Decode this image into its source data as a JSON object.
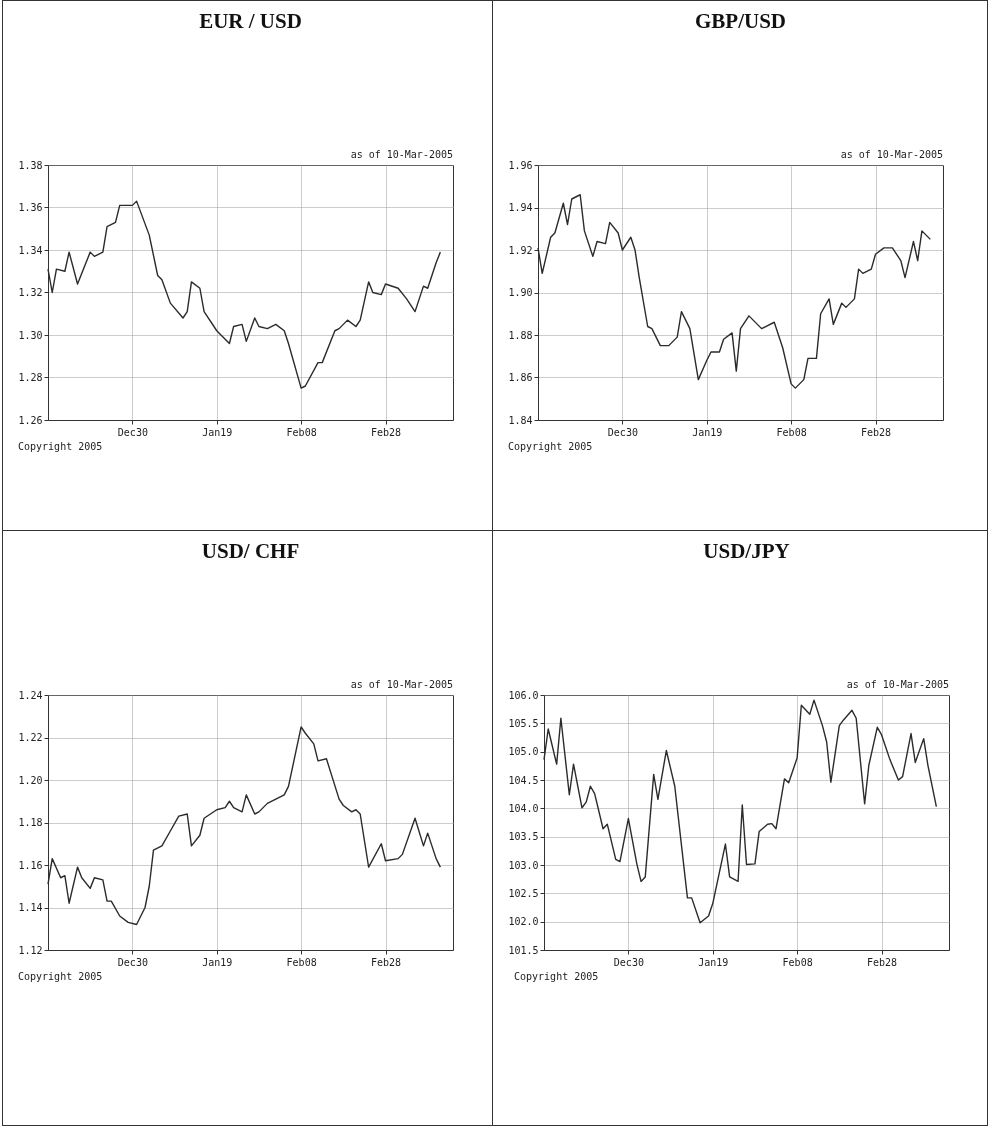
{
  "chart_data": [
    {
      "type": "line",
      "title": "EUR / USD",
      "annotations": [
        "as of 10-Mar-2005",
        "Copyright 2005"
      ],
      "grid": true,
      "xlim": [
        "2004-12-10",
        "2005-03-16"
      ],
      "xticks": [
        {
          "value": "2004-12-30",
          "label": "Dec30"
        },
        {
          "value": "2005-01-19",
          "label": "Jan19"
        },
        {
          "value": "2005-02-08",
          "label": "Feb08"
        },
        {
          "value": "2005-02-28",
          "label": "Feb28"
        }
      ],
      "ylim": [
        1.26,
        1.38
      ],
      "yticks": [
        {
          "value": 1.26,
          "label": "1.26"
        },
        {
          "value": 1.28,
          "label": "1.28"
        },
        {
          "value": 1.3,
          "label": "1.30"
        },
        {
          "value": 1.32,
          "label": "1.32"
        },
        {
          "value": 1.34,
          "label": "1.34"
        },
        {
          "value": 1.36,
          "label": "1.36"
        },
        {
          "value": 1.38,
          "label": "1.38"
        }
      ],
      "x": [
        "2004-12-10",
        "2004-12-11",
        "2004-12-12",
        "2004-12-14",
        "2004-12-15",
        "2004-12-17",
        "2004-12-20",
        "2004-12-21",
        "2004-12-23",
        "2004-12-24",
        "2004-12-26",
        "2004-12-27",
        "2004-12-30",
        "2004-12-31",
        "2005-01-03",
        "2005-01-05",
        "2005-01-06",
        "2005-01-08",
        "2005-01-11",
        "2005-01-12",
        "2005-01-13",
        "2005-01-15",
        "2005-01-16",
        "2005-01-19",
        "2005-01-20",
        "2005-01-22",
        "2005-01-23",
        "2005-01-25",
        "2005-01-26",
        "2005-01-28",
        "2005-01-29",
        "2005-01-31",
        "2005-02-02",
        "2005-02-04",
        "2005-02-05",
        "2005-02-08",
        "2005-02-09",
        "2005-02-12",
        "2005-02-13",
        "2005-02-16",
        "2005-02-17",
        "2005-02-19",
        "2005-02-21",
        "2005-02-22",
        "2005-02-24",
        "2005-02-25",
        "2005-02-27",
        "2005-02-28",
        "2005-03-03",
        "2005-03-05",
        "2005-03-07",
        "2005-03-09",
        "2005-03-10",
        "2005-03-12",
        "2005-03-13"
      ],
      "values": [
        1.331,
        1.32,
        1.331,
        1.33,
        1.339,
        1.324,
        1.339,
        1.337,
        1.339,
        1.351,
        1.353,
        1.361,
        1.361,
        1.363,
        1.347,
        1.328,
        1.326,
        1.315,
        1.308,
        1.311,
        1.325,
        1.322,
        1.311,
        1.302,
        1.3,
        1.296,
        1.304,
        1.305,
        1.297,
        1.308,
        1.304,
        1.303,
        1.305,
        1.302,
        1.296,
        1.275,
        1.276,
        1.287,
        1.287,
        1.302,
        1.303,
        1.307,
        1.304,
        1.307,
        1.325,
        1.32,
        1.319,
        1.324,
        1.322,
        1.317,
        1.311,
        1.323,
        1.322,
        1.334,
        1.339
      ]
    },
    {
      "type": "line",
      "title": "GBP/USD",
      "annotations": [
        "as of 10-Mar-2005",
        "Copyright 2005"
      ],
      "grid": true,
      "xlim": [
        "2004-12-10",
        "2005-03-16"
      ],
      "xticks": [
        {
          "value": "2004-12-30",
          "label": "Dec30"
        },
        {
          "value": "2005-01-19",
          "label": "Jan19"
        },
        {
          "value": "2005-02-08",
          "label": "Feb08"
        },
        {
          "value": "2005-02-28",
          "label": "Feb28"
        }
      ],
      "ylim": [
        1.84,
        1.96
      ],
      "yticks": [
        {
          "value": 1.84,
          "label": "1.84"
        },
        {
          "value": 1.86,
          "label": "1.86"
        },
        {
          "value": 1.88,
          "label": "1.88"
        },
        {
          "value": 1.9,
          "label": "1.90"
        },
        {
          "value": 1.92,
          "label": "1.92"
        },
        {
          "value": 1.94,
          "label": "1.94"
        },
        {
          "value": 1.96,
          "label": "1.96"
        }
      ],
      "x": [
        "2004-12-10",
        "2004-12-11",
        "2004-12-13",
        "2004-12-14",
        "2004-12-16",
        "2004-12-17",
        "2004-12-18",
        "2004-12-20",
        "2004-12-21",
        "2004-12-23",
        "2004-12-24",
        "2004-12-26",
        "2004-12-27",
        "2004-12-29",
        "2004-12-30",
        "2005-01-01",
        "2005-01-02",
        "2005-01-03",
        "2005-01-05",
        "2005-01-06",
        "2005-01-08",
        "2005-01-10",
        "2005-01-12",
        "2005-01-13",
        "2005-01-15",
        "2005-01-17",
        "2005-01-19",
        "2005-01-20",
        "2005-01-22",
        "2005-01-23",
        "2005-01-25",
        "2005-01-26",
        "2005-01-27",
        "2005-01-29",
        "2005-01-30",
        "2005-02-01",
        "2005-02-04",
        "2005-02-06",
        "2005-02-08",
        "2005-02-09",
        "2005-02-11",
        "2005-02-12",
        "2005-02-14",
        "2005-02-15",
        "2005-02-17",
        "2005-02-18",
        "2005-02-20",
        "2005-02-21",
        "2005-02-23",
        "2005-02-24",
        "2005-02-25",
        "2005-02-27",
        "2005-02-28",
        "2005-03-02",
        "2005-03-04",
        "2005-03-06",
        "2005-03-07",
        "2005-03-09",
        "2005-03-10",
        "2005-03-11",
        "2005-03-13"
      ],
      "values": [
        1.921,
        1.909,
        1.926,
        1.928,
        1.942,
        1.932,
        1.944,
        1.946,
        1.929,
        1.917,
        1.924,
        1.923,
        1.933,
        1.928,
        1.92,
        1.926,
        1.92,
        1.907,
        1.884,
        1.883,
        1.875,
        1.875,
        1.879,
        1.891,
        1.883,
        1.859,
        1.868,
        1.872,
        1.872,
        1.878,
        1.881,
        1.863,
        1.883,
        1.889,
        1.887,
        1.883,
        1.886,
        1.874,
        1.857,
        1.855,
        1.859,
        1.869,
        1.869,
        1.89,
        1.897,
        1.885,
        1.895,
        1.893,
        1.897,
        1.911,
        1.909,
        1.911,
        1.918,
        1.921,
        1.921,
        1.915,
        1.907,
        1.924,
        1.915,
        1.929,
        1.925
      ]
    },
    {
      "type": "line",
      "title": "USD/ CHF",
      "annotations": [
        "as of 10-Mar-2005",
        "Copyright 2005"
      ],
      "grid": true,
      "xlim": [
        "2004-12-10",
        "2005-03-16"
      ],
      "xticks": [
        {
          "value": "2004-12-30",
          "label": "Dec30"
        },
        {
          "value": "2005-01-19",
          "label": "Jan19"
        },
        {
          "value": "2005-02-08",
          "label": "Feb08"
        },
        {
          "value": "2005-02-28",
          "label": "Feb28"
        }
      ],
      "ylim": [
        1.12,
        1.24
      ],
      "yticks": [
        {
          "value": 1.12,
          "label": "1.12"
        },
        {
          "value": 1.14,
          "label": "1.14"
        },
        {
          "value": 1.16,
          "label": "1.16"
        },
        {
          "value": 1.18,
          "label": "1.18"
        },
        {
          "value": 1.2,
          "label": "1.20"
        },
        {
          "value": 1.22,
          "label": "1.22"
        },
        {
          "value": 1.24,
          "label": "1.24"
        }
      ],
      "x": [
        "2004-12-10",
        "2004-12-11",
        "2004-12-13",
        "2004-12-14",
        "2004-12-15",
        "2004-12-17",
        "2004-12-18",
        "2004-12-20",
        "2004-12-21",
        "2004-12-23",
        "2004-12-24",
        "2004-12-25",
        "2004-12-27",
        "2004-12-29",
        "2004-12-31",
        "2005-01-02",
        "2005-01-03",
        "2005-01-04",
        "2005-01-06",
        "2005-01-08",
        "2005-01-10",
        "2005-01-12",
        "2005-01-13",
        "2005-01-15",
        "2005-01-16",
        "2005-01-19",
        "2005-01-21",
        "2005-01-22",
        "2005-01-23",
        "2005-01-25",
        "2005-01-26",
        "2005-01-28",
        "2005-01-29",
        "2005-01-31",
        "2005-02-02",
        "2005-02-04",
        "2005-02-05",
        "2005-02-08",
        "2005-02-09",
        "2005-02-11",
        "2005-02-12",
        "2005-02-14",
        "2005-02-17",
        "2005-02-18",
        "2005-02-20",
        "2005-02-21",
        "2005-02-22",
        "2005-02-24",
        "2005-02-27",
        "2005-02-28",
        "2005-03-03",
        "2005-03-04",
        "2005-03-07",
        "2005-03-09",
        "2005-03-10",
        "2005-03-12",
        "2005-03-13"
      ],
      "values": [
        1.151,
        1.163,
        1.154,
        1.155,
        1.142,
        1.159,
        1.154,
        1.149,
        1.154,
        1.153,
        1.143,
        1.143,
        1.136,
        1.133,
        1.132,
        1.14,
        1.15,
        1.167,
        1.169,
        1.176,
        1.183,
        1.184,
        1.169,
        1.174,
        1.182,
        1.186,
        1.187,
        1.19,
        1.187,
        1.185,
        1.193,
        1.184,
        1.185,
        1.189,
        1.191,
        1.193,
        1.197,
        1.225,
        1.222,
        1.217,
        1.209,
        1.21,
        1.191,
        1.188,
        1.185,
        1.186,
        1.184,
        1.159,
        1.17,
        1.162,
        1.163,
        1.165,
        1.182,
        1.169,
        1.175,
        1.163,
        1.159
      ]
    },
    {
      "type": "line",
      "title": "USD/JPY",
      "annotations": [
        "as of 10-Mar-2005",
        "Copyright 2005"
      ],
      "grid": true,
      "xlim": [
        "2004-12-10",
        "2005-03-16"
      ],
      "xticks": [
        {
          "value": "2004-12-30",
          "label": "Dec30"
        },
        {
          "value": "2005-01-19",
          "label": "Jan19"
        },
        {
          "value": "2005-02-08",
          "label": "Feb08"
        },
        {
          "value": "2005-02-28",
          "label": "Feb28"
        }
      ],
      "ylim": [
        101.5,
        106.0
      ],
      "yticks": [
        {
          "value": 101.5,
          "label": "101.5"
        },
        {
          "value": 102,
          "label": "102.0"
        },
        {
          "value": 102.5,
          "label": "102.5"
        },
        {
          "value": 103,
          "label": "103.0"
        },
        {
          "value": 103.5,
          "label": "103.5"
        },
        {
          "value": 104,
          "label": "104.0"
        },
        {
          "value": 104.5,
          "label": "104.5"
        },
        {
          "value": 105,
          "label": "105.0"
        },
        {
          "value": 105.5,
          "label": "105.5"
        },
        {
          "value": 106,
          "label": "106.0"
        }
      ],
      "x": [
        "2004-12-10",
        "2004-12-11",
        "2004-12-13",
        "2004-12-14",
        "2004-12-16",
        "2004-12-17",
        "2004-12-19",
        "2004-12-20",
        "2004-12-21",
        "2004-12-22",
        "2004-12-24",
        "2004-12-25",
        "2004-12-27",
        "2004-12-28",
        "2004-12-30",
        "2005-01-01",
        "2005-01-02",
        "2005-01-03",
        "2005-01-05",
        "2005-01-06",
        "2005-01-08",
        "2005-01-10",
        "2005-01-13",
        "2005-01-14",
        "2005-01-16",
        "2005-01-18",
        "2005-01-19",
        "2005-01-22",
        "2005-01-23",
        "2005-01-25",
        "2005-01-26",
        "2005-01-27",
        "2005-01-29",
        "2005-01-30",
        "2005-02-01",
        "2005-02-02",
        "2005-02-03",
        "2005-02-05",
        "2005-02-06",
        "2005-02-08",
        "2005-02-09",
        "2005-02-11",
        "2005-02-12",
        "2005-02-14",
        "2005-02-15",
        "2005-02-16",
        "2005-02-18",
        "2005-02-19",
        "2005-02-21",
        "2005-02-22",
        "2005-02-24",
        "2005-02-25",
        "2005-02-27",
        "2005-02-28",
        "2005-03-02",
        "2005-03-04",
        "2005-03-05",
        "2005-03-07",
        "2005-03-08",
        "2005-03-10",
        "2005-03-11",
        "2005-03-13"
      ],
      "values": [
        104.86,
        105.4,
        104.78,
        105.59,
        104.24,
        104.78,
        104.01,
        104.11,
        104.39,
        104.26,
        103.64,
        103.72,
        103.1,
        103.06,
        103.82,
        103.02,
        102.71,
        102.79,
        104.6,
        104.16,
        105.02,
        104.39,
        102.42,
        102.42,
        101.98,
        102.1,
        102.32,
        103.37,
        102.79,
        102.71,
        104.06,
        103.01,
        103.02,
        103.59,
        103.72,
        103.73,
        103.64,
        104.52,
        104.45,
        104.89,
        105.82,
        105.66,
        105.91,
        105.46,
        105.17,
        104.46,
        105.46,
        105.56,
        105.73,
        105.59,
        104.08,
        104.76,
        105.43,
        105.3,
        104.86,
        104.5,
        104.56,
        105.32,
        104.81,
        105.23,
        104.76,
        104.03
      ]
    }
  ]
}
